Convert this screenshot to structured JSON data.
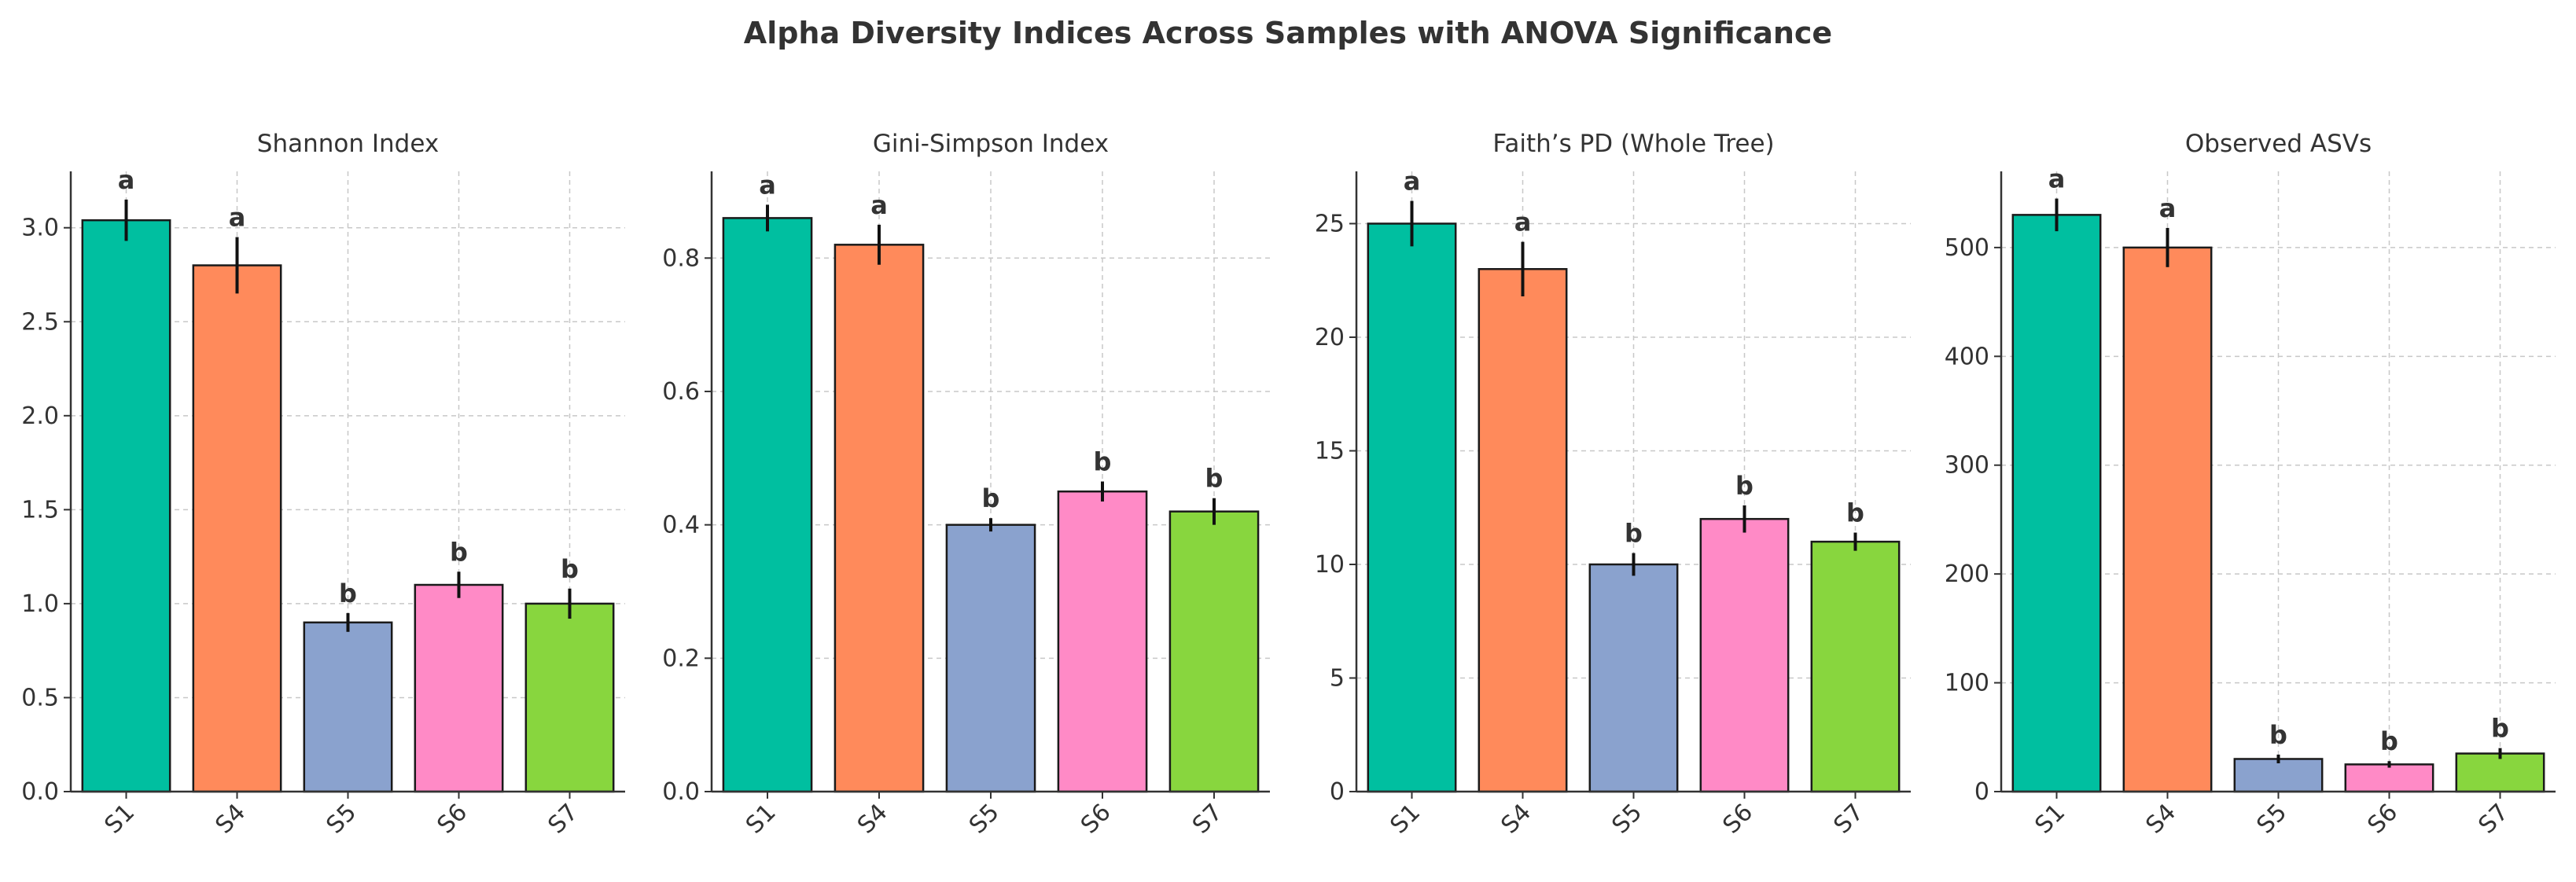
{
  "title": "Alpha Diversity Indices Across Samples with ANOVA Significance",
  "chart_data": [
    {
      "type": "bar",
      "title": "Shannon Index",
      "categories": [
        "S1",
        "S4",
        "S5",
        "S6",
        "S7"
      ],
      "values": [
        3.04,
        2.8,
        0.9,
        1.1,
        1.0
      ],
      "errors": [
        0.11,
        0.15,
        0.05,
        0.07,
        0.08
      ],
      "significance": [
        "a",
        "a",
        "b",
        "b",
        "b"
      ],
      "colors": [
        "#00BFA0",
        "#FF8A5B",
        "#8AA2CE",
        "#FF8AC6",
        "#88D63E"
      ],
      "ylim": [
        0,
        3.3
      ],
      "yticks": [
        0.0,
        0.5,
        1.0,
        1.5,
        2.0,
        2.5,
        3.0
      ],
      "yticklabels": [
        "0.0",
        "0.5",
        "1.0",
        "1.5",
        "2.0",
        "2.5",
        "3.0"
      ],
      "grid": true
    },
    {
      "type": "bar",
      "title": "Gini-Simpson Index",
      "categories": [
        "S1",
        "S4",
        "S5",
        "S6",
        "S7"
      ],
      "values": [
        0.86,
        0.82,
        0.4,
        0.45,
        0.42
      ],
      "errors": [
        0.02,
        0.03,
        0.01,
        0.015,
        0.02
      ],
      "significance": [
        "a",
        "a",
        "b",
        "b",
        "b"
      ],
      "colors": [
        "#00BFA0",
        "#FF8A5B",
        "#8AA2CE",
        "#FF8AC6",
        "#88D63E"
      ],
      "ylim": [
        0,
        0.93
      ],
      "yticks": [
        0.0,
        0.2,
        0.4,
        0.6,
        0.8
      ],
      "yticklabels": [
        "0.0",
        "0.2",
        "0.4",
        "0.6",
        "0.8"
      ],
      "grid": true
    },
    {
      "type": "bar",
      "title": "Faith’s PD (Whole Tree)",
      "categories": [
        "S1",
        "S4",
        "S5",
        "S6",
        "S7"
      ],
      "values": [
        25,
        23,
        10,
        12,
        11
      ],
      "errors": [
        1.0,
        1.2,
        0.5,
        0.6,
        0.4
      ],
      "significance": [
        "a",
        "a",
        "b",
        "b",
        "b"
      ],
      "colors": [
        "#00BFA0",
        "#FF8A5B",
        "#8AA2CE",
        "#FF8AC6",
        "#88D63E"
      ],
      "ylim": [
        0,
        27.3
      ],
      "yticks": [
        0,
        5,
        10,
        15,
        20,
        25
      ],
      "yticklabels": [
        "0",
        "5",
        "10",
        "15",
        "20",
        "25"
      ],
      "grid": true
    },
    {
      "type": "bar",
      "title": "Observed ASVs",
      "categories": [
        "S1",
        "S4",
        "S5",
        "S6",
        "S7"
      ],
      "values": [
        530,
        500,
        30,
        25,
        35
      ],
      "errors": [
        15,
        18,
        4,
        3,
        5
      ],
      "significance": [
        "a",
        "a",
        "b",
        "b",
        "b"
      ],
      "colors": [
        "#00BFA0",
        "#FF8A5B",
        "#8AA2CE",
        "#FF8AC6",
        "#88D63E"
      ],
      "ylim": [
        0,
        570
      ],
      "yticks": [
        0,
        100,
        200,
        300,
        400,
        500
      ],
      "yticklabels": [
        "0",
        "100",
        "200",
        "300",
        "400",
        "500"
      ],
      "grid": true
    }
  ]
}
